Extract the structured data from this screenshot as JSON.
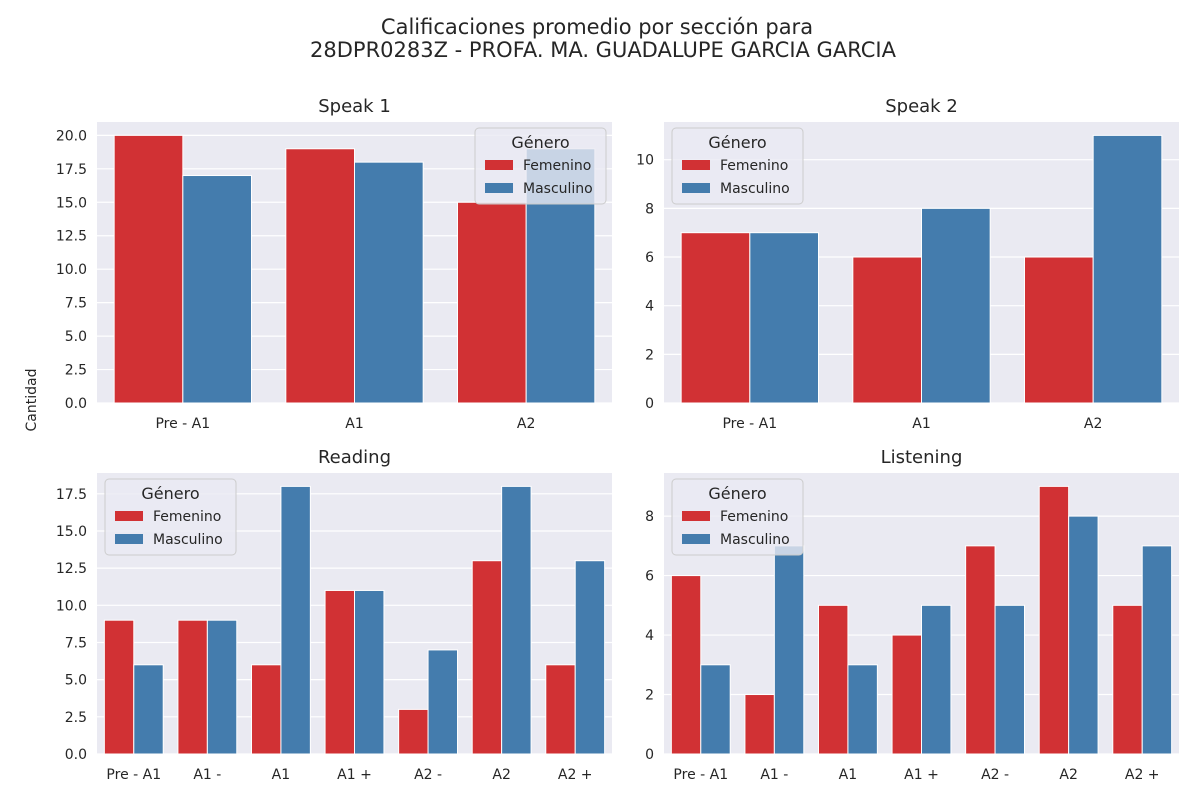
{
  "figure": {
    "title_line1": "Calificaciones promedio por sección para",
    "title_line2": "28DPR0283Z - PROFA. MA. GUADALUPE GARCIA GARCIA",
    "ylabel": "Cantidad"
  },
  "colors": {
    "Femenino": "#d13134",
    "Masculino": "#447cad",
    "panel_bg": "#eaeaf2",
    "grid": "#ffffff"
  },
  "chart_data": [
    {
      "type": "bar",
      "title": "Speak 1",
      "categories": [
        "Pre - A1",
        "A1",
        "A2"
      ],
      "series": [
        {
          "name": "Femenino",
          "values": [
            20,
            19,
            15
          ]
        },
        {
          "name": "Masculino",
          "values": [
            17,
            18,
            19
          ]
        }
      ],
      "ylim": [
        0,
        21
      ],
      "yticks": [
        "0.0",
        "2.5",
        "5.0",
        "7.5",
        "10.0",
        "12.5",
        "15.0",
        "17.5",
        "20.0"
      ],
      "legend": {
        "title": "Género",
        "position": "top-right"
      },
      "grid": true
    },
    {
      "type": "bar",
      "title": "Speak 2",
      "categories": [
        "Pre - A1",
        "A1",
        "A2"
      ],
      "series": [
        {
          "name": "Femenino",
          "values": [
            7,
            6,
            6
          ]
        },
        {
          "name": "Masculino",
          "values": [
            7,
            8,
            11
          ]
        }
      ],
      "ylim": [
        0,
        11.55
      ],
      "yticks": [
        "0",
        "2",
        "4",
        "6",
        "8",
        "10"
      ],
      "legend": {
        "title": "Género",
        "position": "top-left"
      },
      "grid": true
    },
    {
      "type": "bar",
      "title": "Reading",
      "categories": [
        "Pre - A1",
        "A1 -",
        "A1",
        "A1 +",
        "A2 -",
        "A2",
        "A2 +"
      ],
      "series": [
        {
          "name": "Femenino",
          "values": [
            9,
            9,
            6,
            11,
            3,
            13,
            6
          ]
        },
        {
          "name": "Masculino",
          "values": [
            6,
            9,
            18,
            11,
            7,
            18,
            13
          ]
        }
      ],
      "ylim": [
        0,
        18.9
      ],
      "yticks": [
        "0.0",
        "2.5",
        "5.0",
        "7.5",
        "10.0",
        "12.5",
        "15.0",
        "17.5"
      ],
      "legend": {
        "title": "Género",
        "position": "top-left"
      },
      "grid": true
    },
    {
      "type": "bar",
      "title": "Listening",
      "categories": [
        "Pre - A1",
        "A1 -",
        "A1",
        "A1 +",
        "A2 -",
        "A2",
        "A2 +"
      ],
      "series": [
        {
          "name": "Femenino",
          "values": [
            6,
            2,
            5,
            4,
            7,
            9,
            5
          ]
        },
        {
          "name": "Masculino",
          "values": [
            3,
            7,
            3,
            5,
            5,
            8,
            7
          ]
        }
      ],
      "ylim": [
        0,
        9.45
      ],
      "yticks": [
        "0",
        "2",
        "4",
        "6",
        "8"
      ],
      "legend": {
        "title": "Género",
        "position": "top-left"
      },
      "grid": true
    }
  ]
}
